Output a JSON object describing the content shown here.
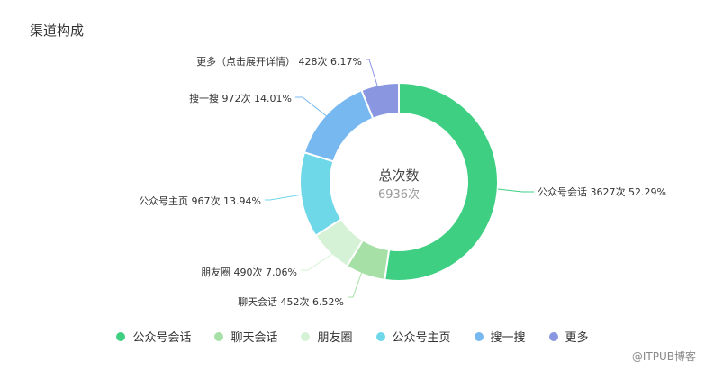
{
  "page_title": "渠道构成",
  "watermark": "@ITPUB博客",
  "chart_data": {
    "type": "pie",
    "donut": true,
    "title": "渠道构成",
    "center_label": "总次数",
    "center_value": "6936次",
    "legend_position": "bottom",
    "slices": [
      {
        "name": "公众号会话",
        "value": 3627,
        "percent": 52.29,
        "label": "公众号会话 3627次 52.29%",
        "color": "#3ecf82"
      },
      {
        "name": "聊天会话",
        "value": 452,
        "percent": 6.52,
        "label": "聊天会话 452次 6.52%",
        "color": "#a6e0a6"
      },
      {
        "name": "朋友圈",
        "value": 490,
        "percent": 7.06,
        "label": "朋友圈 490次 7.06%",
        "color": "#d6f2d6"
      },
      {
        "name": "公众号主页",
        "value": 967,
        "percent": 13.94,
        "label": "公众号主页 967次 13.94%",
        "color": "#6ed8e8"
      },
      {
        "name": "搜一搜",
        "value": 972,
        "percent": 14.01,
        "label": "搜一搜 972次 14.01%",
        "color": "#78b8f0"
      },
      {
        "name": "更多",
        "value": 428,
        "percent": 6.17,
        "label": "更多（点击展开详情） 428次 6.17%",
        "color": "#8a96e0"
      }
    ]
  }
}
